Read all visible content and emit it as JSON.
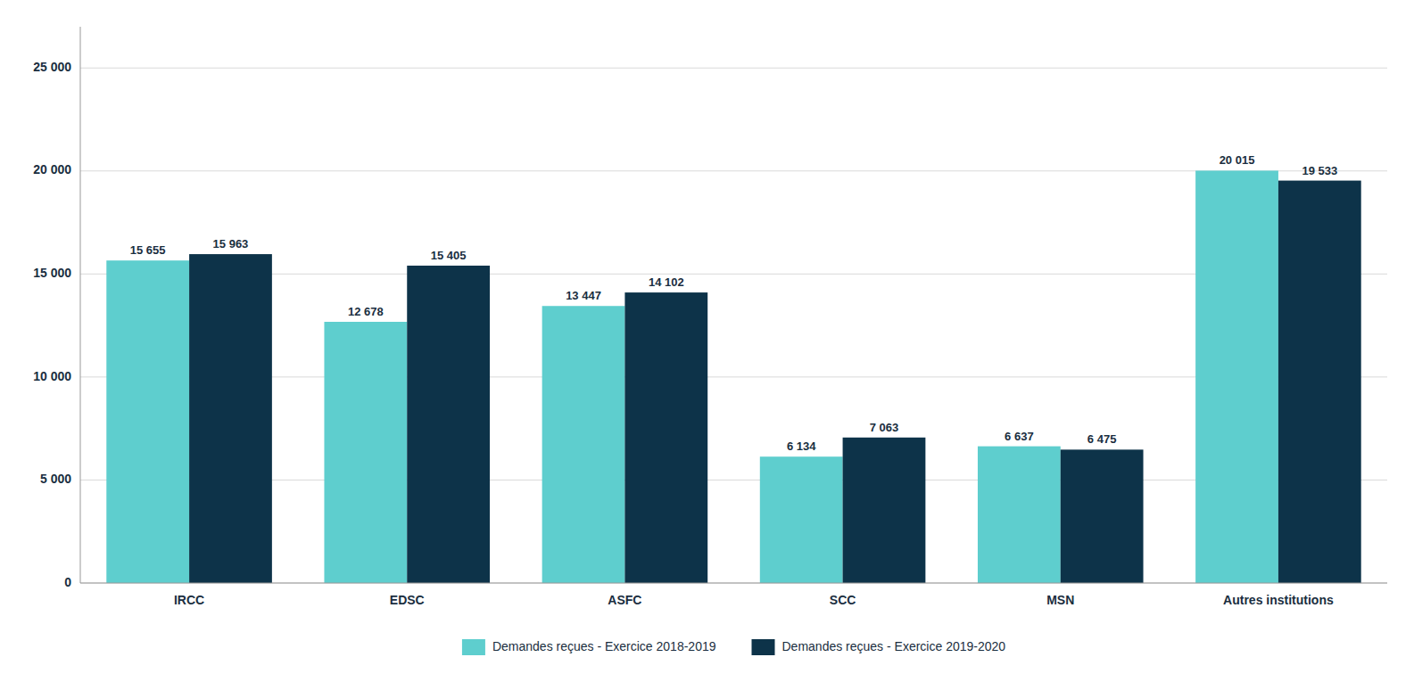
{
  "chart_data": {
    "type": "bar",
    "categories": [
      "IRCC",
      "EDSC",
      "ASFC",
      "SCC",
      "MSN",
      "Autres institutions"
    ],
    "series": [
      {
        "name": "Demandes reçues - Exercice 2018-2019",
        "color": "#5ecece",
        "values": [
          15655,
          12678,
          13447,
          6134,
          6637,
          20015
        ],
        "value_labels": [
          "15 655",
          "12 678",
          "13 447",
          "6 134",
          "6 637",
          "20 015"
        ]
      },
      {
        "name": "Demandes reçues - Exercice 2019-2020",
        "color": "#0d3349",
        "values": [
          15963,
          15405,
          14102,
          7063,
          6475,
          19533
        ],
        "value_labels": [
          "15 963",
          "15 405",
          "14 102",
          "7 063",
          "6 475",
          "19 533"
        ]
      }
    ],
    "ylim": [
      0,
      27000
    ],
    "yticks": [
      0,
      {
        "value": 5000,
        "label": "5 000"
      },
      {
        "value": 10000,
        "label": "10 000"
      },
      {
        "value": 15000,
        "label": "15 000"
      },
      {
        "value": 20000,
        "label": "20 000"
      },
      {
        "value": 25000,
        "label": "25 000"
      }
    ],
    "grid": true,
    "legend": "bottom",
    "data_labels": true
  }
}
